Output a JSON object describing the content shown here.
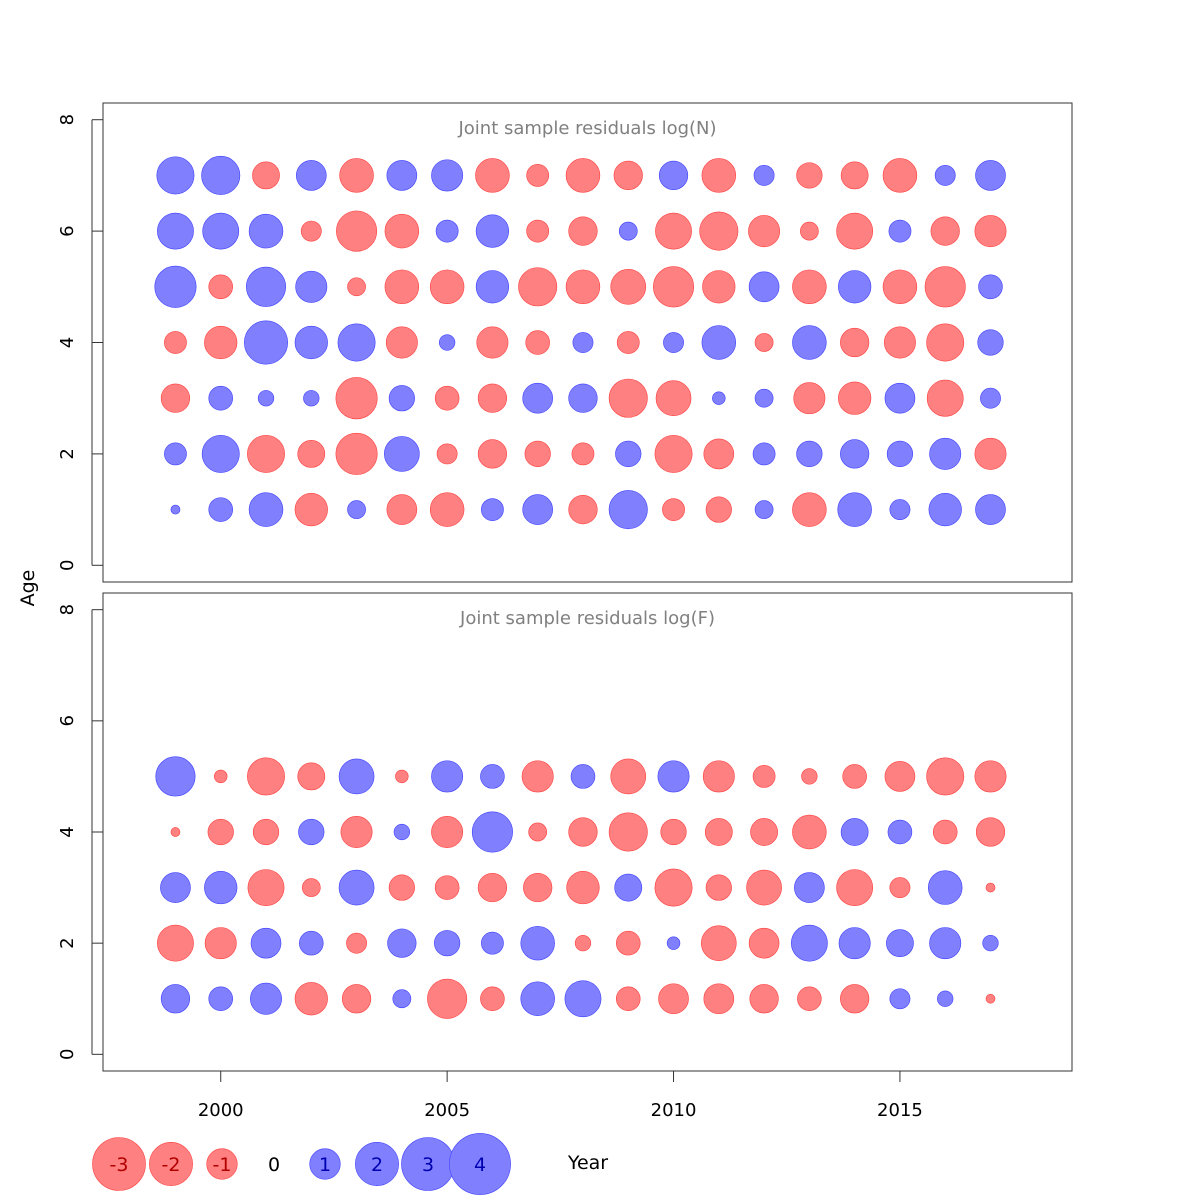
{
  "chart_data": {
    "type": "bubble",
    "xlabel": "Year",
    "ylabel": "Age",
    "xlim": [
      1997.4,
      2018.8
    ],
    "ylim": [
      -0.3,
      8.3
    ],
    "x_ticks": [
      2000,
      2005,
      2010,
      2015
    ],
    "y_ticks": [
      0,
      2,
      4,
      6,
      8
    ],
    "colors": {
      "positive": "#8080ff",
      "negative": "#ff8080",
      "positive_edge": "#4040ff",
      "negative_edge": "#ff4040"
    },
    "years": [
      1999,
      2000,
      2001,
      2002,
      2003,
      2004,
      2005,
      2006,
      2007,
      2008,
      2009,
      2010,
      2011,
      2012,
      2013,
      2014,
      2015,
      2016,
      2017
    ],
    "panels": [
      {
        "title": "Joint sample residuals log(N)",
        "ages": [
          1,
          2,
          3,
          4,
          5,
          6,
          7
        ],
        "residuals": {
          "1": [
            0.1,
            0.7,
            1.4,
            -1.3,
            0.4,
            -1.1,
            -1.4,
            0.6,
            1.1,
            -1.0,
            1.8,
            -0.6,
            -0.8,
            0.4,
            -1.4,
            1.4,
            0.5,
            1.3,
            1.1
          ],
          "2": [
            0.6,
            1.7,
            -1.7,
            -0.9,
            -2.1,
            1.5,
            -0.5,
            -1.0,
            -0.8,
            -0.6,
            0.8,
            -1.7,
            -1.1,
            0.6,
            0.8,
            1.0,
            0.8,
            1.2,
            -1.2
          ],
          "3": [
            -1.0,
            0.7,
            0.3,
            0.3,
            -2.1,
            0.8,
            -0.7,
            -1.0,
            1.1,
            1.0,
            -1.8,
            -1.5,
            0.2,
            0.4,
            -1.2,
            -1.3,
            1.1,
            -1.6,
            0.5
          ],
          "4": [
            -0.6,
            -1.3,
            2.3,
            1.3,
            1.7,
            -1.2,
            0.3,
            -1.2,
            -0.7,
            0.5,
            -0.6,
            0.5,
            1.4,
            -0.4,
            1.4,
            -1.0,
            -1.2,
            -1.7,
            0.8
          ],
          "5": [
            2.1,
            -0.7,
            1.9,
            1.2,
            -0.4,
            -1.4,
            -1.4,
            1.3,
            -1.8,
            -1.4,
            -1.5,
            -2.0,
            -1.3,
            1.1,
            -1.4,
            1.3,
            -1.4,
            -2.0,
            0.7
          ],
          "6": [
            1.6,
            1.6,
            1.4,
            -0.5,
            -2.0,
            -1.4,
            0.6,
            1.3,
            -0.6,
            -1.0,
            0.4,
            -1.6,
            -1.8,
            -1.2,
            -0.4,
            -1.6,
            0.6,
            -1.0,
            -1.2
          ],
          "7": [
            1.7,
            1.8,
            -0.9,
            1.1,
            -1.4,
            1.1,
            1.2,
            -1.4,
            -0.6,
            -1.4,
            -1.0,
            1.0,
            -1.4,
            0.5,
            -0.8,
            -0.9,
            -1.4,
            0.5,
            1.1
          ]
        }
      },
      {
        "title": "Joint sample residuals log(F)",
        "ages": [
          1,
          2,
          3,
          4,
          5
        ],
        "residuals": {
          "1": [
            1.0,
            0.7,
            1.2,
            -1.3,
            -1.0,
            0.4,
            -1.9,
            -0.7,
            1.4,
            1.6,
            -0.7,
            -1.1,
            -1.1,
            -1.0,
            -0.7,
            -1.0,
            0.5,
            0.3,
            -0.1
          ],
          "2": [
            -1.6,
            -1.2,
            1.1,
            0.7,
            -0.5,
            1.0,
            0.8,
            0.6,
            1.4,
            -0.3,
            -0.7,
            0.2,
            -1.5,
            -1.1,
            1.6,
            1.2,
            0.9,
            1.2,
            0.3
          ],
          "3": [
            1.1,
            1.3,
            -1.6,
            -0.4,
            1.5,
            -0.8,
            -0.7,
            -1.0,
            -1.0,
            -1.3,
            0.9,
            -1.7,
            -0.8,
            -1.5,
            1.1,
            -1.6,
            -0.5,
            1.4,
            -0.1
          ],
          "4": [
            -0.1,
            -0.8,
            -0.8,
            0.8,
            -1.2,
            0.3,
            -1.2,
            2.0,
            -0.4,
            -1.0,
            -1.8,
            -0.8,
            -0.9,
            -0.9,
            -1.4,
            0.9,
            0.7,
            -0.7,
            -1.0
          ],
          "5": [
            1.9,
            -0.2,
            -1.7,
            -0.9,
            1.5,
            -0.2,
            1.2,
            0.7,
            -1.2,
            0.7,
            -1.5,
            1.2,
            -1.2,
            -0.6,
            -0.3,
            -0.7,
            -1.1,
            -1.7,
            -1.2
          ]
        }
      }
    ],
    "legend": {
      "placement": "bottom-left",
      "entries": [
        {
          "label": "-3",
          "value": -3
        },
        {
          "label": "-2",
          "value": -2
        },
        {
          "label": "-1",
          "value": -1
        },
        {
          "label": "0",
          "value": 0
        },
        {
          "label": "1",
          "value": 1
        },
        {
          "label": "2",
          "value": 2
        },
        {
          "label": "3",
          "value": 3
        },
        {
          "label": "4",
          "value": 4
        }
      ]
    }
  }
}
